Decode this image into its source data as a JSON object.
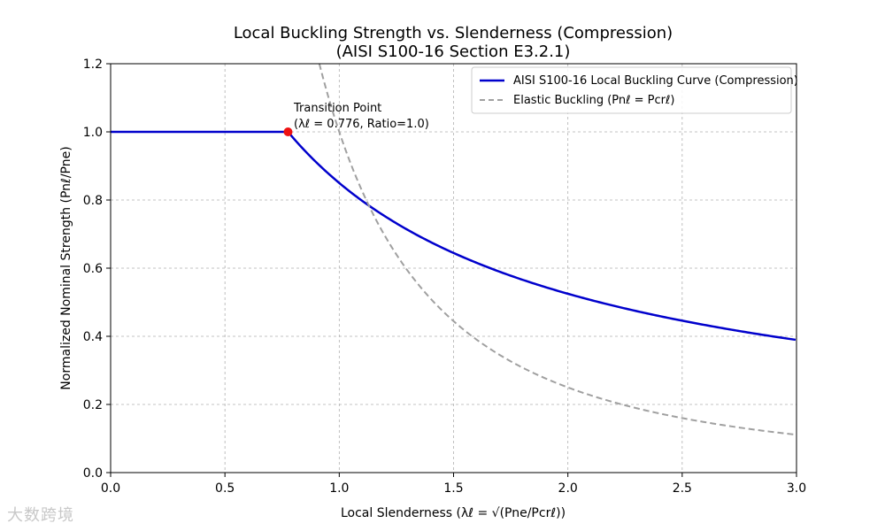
{
  "chart_data": {
    "type": "line",
    "title": [
      "Local Buckling Strength vs. Slenderness (Compression)",
      "(AISI S100-16 Section E3.2.1)"
    ],
    "xlabel": "Local Slenderness (λℓ = √(Pne/Pcrℓ))",
    "ylabel": "Normalized Nominal Strength (Pnℓ/Pne)",
    "xlim": [
      0,
      3.0
    ],
    "ylim": [
      0,
      1.2
    ],
    "xticks": [
      "0.0",
      "0.5",
      "1.0",
      "1.5",
      "2.0",
      "2.5",
      "3.0"
    ],
    "yticks": [
      "0.0",
      "0.2",
      "0.4",
      "0.6",
      "0.8",
      "1.0",
      "1.2"
    ],
    "grid": true,
    "legend_position": "top-right",
    "series": [
      {
        "name": "AISI S100-16 Local Buckling Curve (Compression)",
        "color": "#0000cc",
        "style": "solid",
        "formula": "lambda <= 0.776 ? 1.0 : (1 - 0.15*lambda^-0.8)*lambda^-0.8",
        "x": [
          0.0,
          0.5,
          0.776,
          1.0,
          1.25,
          1.5,
          1.75,
          2.0,
          2.25,
          2.5,
          2.75,
          3.0
        ],
        "y": [
          1.0,
          1.0,
          1.0,
          0.85,
          0.727,
          0.645,
          0.579,
          0.527,
          0.484,
          0.447,
          0.416,
          0.389
        ]
      },
      {
        "name": "Elastic Buckling (Pnℓ = Pcrℓ)",
        "color": "#a0a0a0",
        "style": "dashed",
        "formula": "1 / lambda^2",
        "x": [
          0.913,
          1.0,
          1.25,
          1.5,
          1.75,
          2.0,
          2.25,
          2.5,
          2.75,
          3.0
        ],
        "y": [
          1.2,
          1.0,
          0.64,
          0.444,
          0.327,
          0.25,
          0.198,
          0.16,
          0.132,
          0.111
        ]
      }
    ],
    "annotations": [
      {
        "label_line1": "Transition Point",
        "label_line2": "(λℓ = 0.776, Ratio=1.0)",
        "x": 0.776,
        "y": 1.0,
        "marker_color": "#ee1111"
      }
    ]
  },
  "watermark": "大数跨境"
}
